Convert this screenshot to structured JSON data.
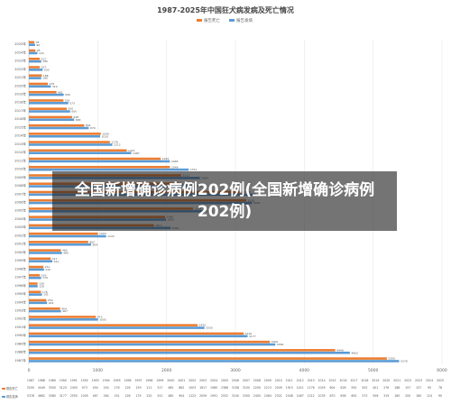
{
  "chart_data": {
    "type": "bar",
    "orientation": "horizontal",
    "title": "1987-2025年中国狂犬病发病及死亡情况",
    "series": [
      {
        "name": "报告死亡",
        "color": "#ed7d31",
        "values": [
          5200,
          4449,
          3500,
          3120,
          2450,
          973,
          454,
          254,
          176,
          126,
          159,
          211,
          317,
          465,
          862,
          1003,
          1817,
          1980,
          2386,
          3158,
          3100,
          2200,
          2213,
          2049,
          1915,
          1421,
          1176,
          1045,
          804,
          628,
          550,
          502,
          401,
          276,
          188,
          157,
          157,
          95,
          78
        ]
      },
      {
        "name": "报告发病",
        "color": "#5b9bd5",
        "values": [
          5378,
          4662,
          3580,
          3177,
          2550,
          1005,
          467,
          264,
          191,
          128,
          179,
          220,
          341,
          480,
          904,
          1122,
          2059,
          1991,
          2552,
          3240,
          3300,
          2400,
          2484,
          2321,
          2048,
          1487,
          1212,
          1035,
          870,
          658,
          600,
          573,
          506,
          319,
          180,
          200,
          180,
          124,
          90
        ]
      },
      {
        "name": "",
        "color": "#a5a5a5",
        "values": [
          0,
          0,
          0,
          0,
          0,
          0,
          0,
          0,
          0,
          0,
          0,
          0,
          0,
          0,
          0,
          0,
          0,
          0,
          0,
          0,
          0,
          0,
          0,
          0,
          0,
          0,
          0,
          0,
          0,
          0,
          0,
          0,
          0,
          0,
          0,
          0,
          0,
          0,
          0
        ]
      }
    ],
    "categories": [
      "1987年",
      "1988年",
      "1989年",
      "1990年",
      "1991年",
      "1992年",
      "1993年",
      "1994年",
      "1995年",
      "1996年",
      "1997年",
      "1998年",
      "1999年",
      "2000年",
      "2001年",
      "2002年",
      "2003年",
      "2004年",
      "2005年",
      "2006年",
      "2007年",
      "2008年",
      "2009年",
      "2010年",
      "2011年",
      "2012年",
      "2013年",
      "2014年",
      "2015年",
      "2016年",
      "2017年",
      "2018年",
      "2019年",
      "2020年",
      "2021年",
      "2022年",
      "2023年",
      "2024年",
      "2025年"
    ],
    "table_headers": [
      "1987",
      "1988",
      "1989",
      "1990",
      "1991",
      "1992",
      "1993",
      "1994",
      "1995",
      "1996",
      "1997",
      "1998",
      "1999",
      "2000",
      "2001",
      "2002",
      "2003",
      "2004",
      "2005",
      "2006",
      "2007",
      "2008",
      "2009",
      "2010",
      "2011",
      "2012",
      "2013",
      "2014",
      "2015",
      "2016",
      "2017",
      "2018",
      "2019",
      "2020",
      "2021",
      "2022",
      "2023",
      "2024",
      "2025"
    ],
    "table_rows": [
      {
        "label": "报告死亡",
        "values": [
          "5200",
          "4449",
          "3500",
          "3120",
          "2450",
          "973",
          "454",
          "254",
          "176",
          "126",
          "159",
          "211",
          "317",
          "465",
          "862",
          "1003",
          "1817",
          "1980",
          "2386",
          "3158",
          "3100",
          "2200",
          "2213",
          "2049",
          "1915",
          "1421",
          "1176",
          "1045",
          "804",
          "628",
          "550",
          "502",
          "401",
          "276",
          "188",
          "157",
          "157",
          "95",
          "78"
        ]
      },
      {
        "label": "报告发病",
        "values": [
          "5378",
          "4662",
          "3580",
          "3177",
          "2550",
          "1005",
          "467",
          "264",
          "191",
          "128",
          "179",
          "220",
          "341",
          "480",
          "904",
          "1122",
          "2059",
          "1991",
          "2552",
          "3240",
          "3300",
          "2400",
          "2484",
          "2321",
          "2048",
          "1487",
          "1212",
          "1035",
          "870",
          "658",
          "600",
          "573",
          "506",
          "319",
          "180",
          "200",
          "180",
          "124",
          "90"
        ]
      }
    ],
    "xlim": [
      0,
      6000
    ],
    "xticks": [
      "0",
      "1000",
      "2000",
      "3000",
      "4000",
      "5000",
      "6000"
    ],
    "legend_position": "top",
    "grid": true
  },
  "banner": {
    "text": "全国新增确诊病例202例(全国新增确诊病例202例)"
  }
}
